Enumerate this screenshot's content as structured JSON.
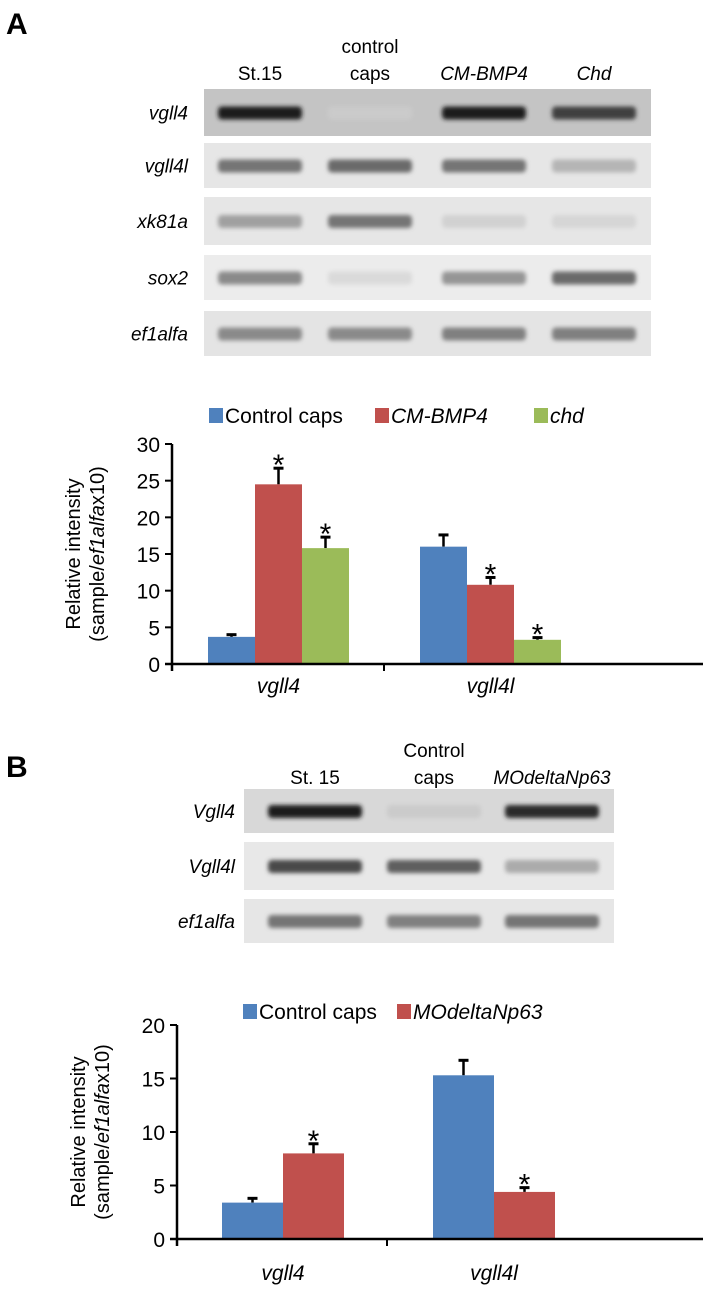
{
  "panels": [
    {
      "label": "A",
      "gel": {
        "lanes": [
          [
            "St.15"
          ],
          [
            "control",
            "caps"
          ],
          [
            "CM-BMP4"
          ],
          [
            "Chd"
          ]
        ],
        "lane_italic": [
          false,
          false,
          true,
          true
        ],
        "rows": [
          {
            "gene": "vgll4",
            "band_intensity": [
              0.95,
              0.15,
              0.95,
              0.8
            ],
            "bg": "#c4c4c4"
          },
          {
            "gene": "vgll4l",
            "band_intensity": [
              0.55,
              0.6,
              0.55,
              0.25
            ],
            "bg": "#e6e6e6"
          },
          {
            "gene": "xk81a",
            "band_intensity": [
              0.35,
              0.55,
              0.12,
              0.1
            ],
            "bg": "#e6e6e6"
          },
          {
            "gene": "sox2",
            "band_intensity": [
              0.45,
              0.08,
              0.4,
              0.6
            ],
            "bg": "#ececec"
          },
          {
            "gene": "ef1alfa",
            "band_intensity": [
              0.45,
              0.45,
              0.5,
              0.5
            ],
            "bg": "#e4e4e4"
          }
        ]
      }
    },
    {
      "label": "B",
      "gel": {
        "lanes": [
          [
            "St. 15"
          ],
          [
            "Control",
            "caps"
          ],
          [
            "MOdeltaNp63"
          ]
        ],
        "lane_italic": [
          false,
          false,
          true
        ],
        "rows": [
          {
            "gene": "Vgll4",
            "band_intensity": [
              0.95,
              0.15,
              0.9
            ],
            "bg": "#d8d8d8"
          },
          {
            "gene": "Vgll4l",
            "band_intensity": [
              0.75,
              0.65,
              0.3
            ],
            "bg": "#e8e8e8"
          },
          {
            "gene": "ef1alfa",
            "band_intensity": [
              0.55,
              0.5,
              0.55
            ],
            "bg": "#e6e6e6"
          }
        ]
      }
    }
  ],
  "chart_data": [
    {
      "type": "bar",
      "title": "",
      "ylabel_parts": [
        "Relative intensity",
        "(sample/",
        "ef1alfa",
        "x10)"
      ],
      "categories": [
        "vgll4",
        "vgll4l"
      ],
      "ylim": [
        0,
        30
      ],
      "yticks": [
        "0",
        "5",
        "10",
        "15",
        "20",
        "25",
        "30"
      ],
      "legend_position": "top",
      "series": [
        {
          "name": "Control caps",
          "italic": false,
          "color": "#4f81bd",
          "values": [
            3.7,
            16.0
          ],
          "errors": [
            0.3,
            1.6
          ],
          "significant": [
            false,
            false
          ]
        },
        {
          "name": "CM-BMP4",
          "italic": true,
          "color": "#c0504d",
          "values": [
            24.5,
            10.8
          ],
          "errors": [
            2.2,
            1.0
          ],
          "significant": [
            true,
            true
          ]
        },
        {
          "name": "chd",
          "italic": true,
          "color": "#9bbb59",
          "values": [
            15.8,
            3.3
          ],
          "errors": [
            1.5,
            0.3
          ],
          "significant": [
            true,
            true
          ]
        }
      ],
      "sig_marker": "*"
    },
    {
      "type": "bar",
      "title": "",
      "ylabel_parts": [
        "Relative intensity",
        "(sample/",
        "ef1alfa",
        "x10)"
      ],
      "categories": [
        "vgll4",
        "vgll4l"
      ],
      "ylim": [
        0,
        20
      ],
      "yticks": [
        "0",
        "5",
        "10",
        "15",
        "20"
      ],
      "legend_position": "top",
      "series": [
        {
          "name": "Control caps",
          "italic": false,
          "color": "#4f81bd",
          "values": [
            3.4,
            15.3
          ],
          "errors": [
            0.4,
            1.4
          ],
          "significant": [
            false,
            false
          ]
        },
        {
          "name": "MOdeltaNp63",
          "italic": true,
          "color": "#c0504d",
          "values": [
            8.0,
            4.4
          ],
          "errors": [
            0.9,
            0.4
          ],
          "significant": [
            true,
            true
          ]
        }
      ],
      "sig_marker": "*"
    }
  ]
}
